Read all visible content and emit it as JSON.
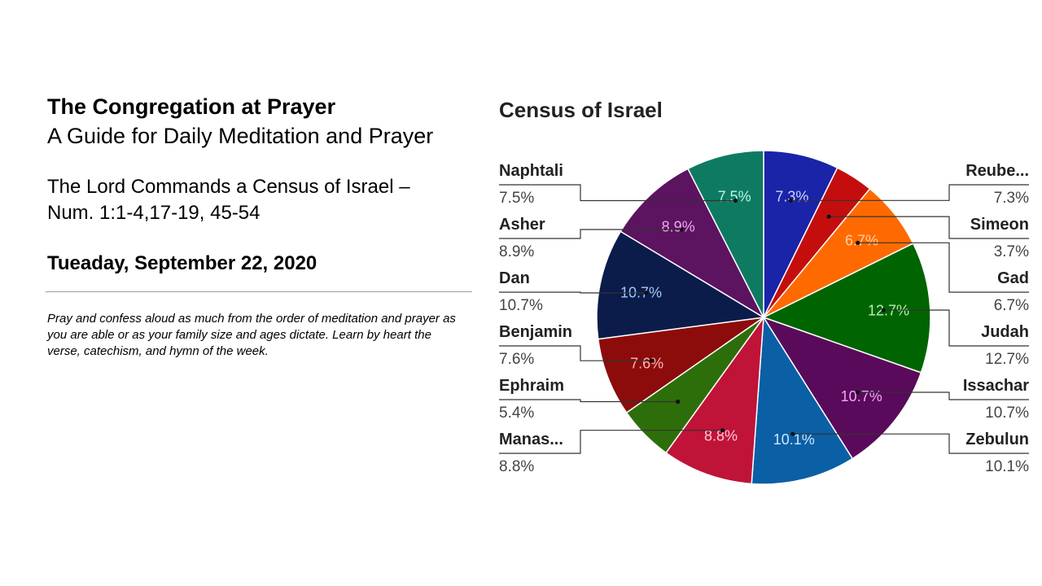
{
  "header": {
    "title": "The Congregation at Prayer",
    "subtitle": "A Guide for Daily Meditation and Prayer",
    "lesson_line1": "The Lord Commands a Census of Israel –",
    "lesson_line2": "Num. 1:1-4,17-19, 45-54",
    "date": "Tueaday, September 22, 2020",
    "instructions": "Pray and confess aloud as much from the order of meditation and prayer as you are able or as your family size and ages dictate. Learn by heart the verse, catechism, and hymn of the week."
  },
  "chart_data": {
    "type": "pie",
    "title": "Census of Israel",
    "start_angle_deg": 0,
    "direction": "clockwise",
    "slices": [
      {
        "label": "Reube...",
        "value": 7.3,
        "pct_label": "7.3%",
        "color": "#1a24a8",
        "text_color": "#cfd6ff"
      },
      {
        "label": "Simeon",
        "value": 3.7,
        "pct_label": "",
        "color": "#c40e0e",
        "text_color": "#ffffff"
      },
      {
        "label": "Gad",
        "value": 6.7,
        "pct_label": "6.7%",
        "color": "#ff6a00",
        "text_color": "#ffd0a0"
      },
      {
        "label": "Judah",
        "value": 12.7,
        "pct_label": "12.7%",
        "color": "#006400",
        "text_color": "#b8f0b8"
      },
      {
        "label": "Issachar",
        "value": 10.7,
        "pct_label": "10.7%",
        "color": "#5a0a5a",
        "text_color": "#f0a8f0"
      },
      {
        "label": "Zebulun",
        "value": 10.1,
        "pct_label": "10.1%",
        "color": "#0b5fa5",
        "text_color": "#cde6ff"
      },
      {
        "label": "Manas...",
        "value": 8.8,
        "pct_label": "8.8%",
        "color": "#c01338",
        "text_color": "#ffc8d6"
      },
      {
        "label": "Ephraim",
        "value": 5.4,
        "pct_label": "",
        "color": "#2d6e0a",
        "text_color": "#ffffff"
      },
      {
        "label": "Benjamin",
        "value": 7.6,
        "pct_label": "7.6%",
        "color": "#8c0c0c",
        "text_color": "#ffb4b4"
      },
      {
        "label": "Dan",
        "value": 10.7,
        "pct_label": "10.7%",
        "color": "#0c1c4a",
        "text_color": "#9ec8ff"
      },
      {
        "label": "Asher",
        "value": 8.9,
        "pct_label": "8.9%",
        "color": "#5c1360",
        "text_color": "#f0a8f0"
      },
      {
        "label": "Naphtali",
        "value": 7.5,
        "pct_label": "7.5%",
        "color": "#0f7a62",
        "text_color": "#b8f5e4"
      }
    ],
    "legend_right": [
      {
        "name": "Reube...",
        "value": "7.3%"
      },
      {
        "name": "Simeon",
        "value": "3.7%"
      },
      {
        "name": "Gad",
        "value": "6.7%"
      },
      {
        "name": "Judah",
        "value": "12.7%"
      },
      {
        "name": "Issachar",
        "value": "10.7%"
      },
      {
        "name": "Zebulun",
        "value": "10.1%"
      }
    ],
    "legend_left": [
      {
        "name": "Naphtali",
        "value": "7.5%"
      },
      {
        "name": "Asher",
        "value": "8.9%"
      },
      {
        "name": "Dan",
        "value": "10.7%"
      },
      {
        "name": "Benjamin",
        "value": "7.6%"
      },
      {
        "name": "Ephraim",
        "value": "5.4%"
      },
      {
        "name": "Manas...",
        "value": "8.8%"
      }
    ]
  }
}
